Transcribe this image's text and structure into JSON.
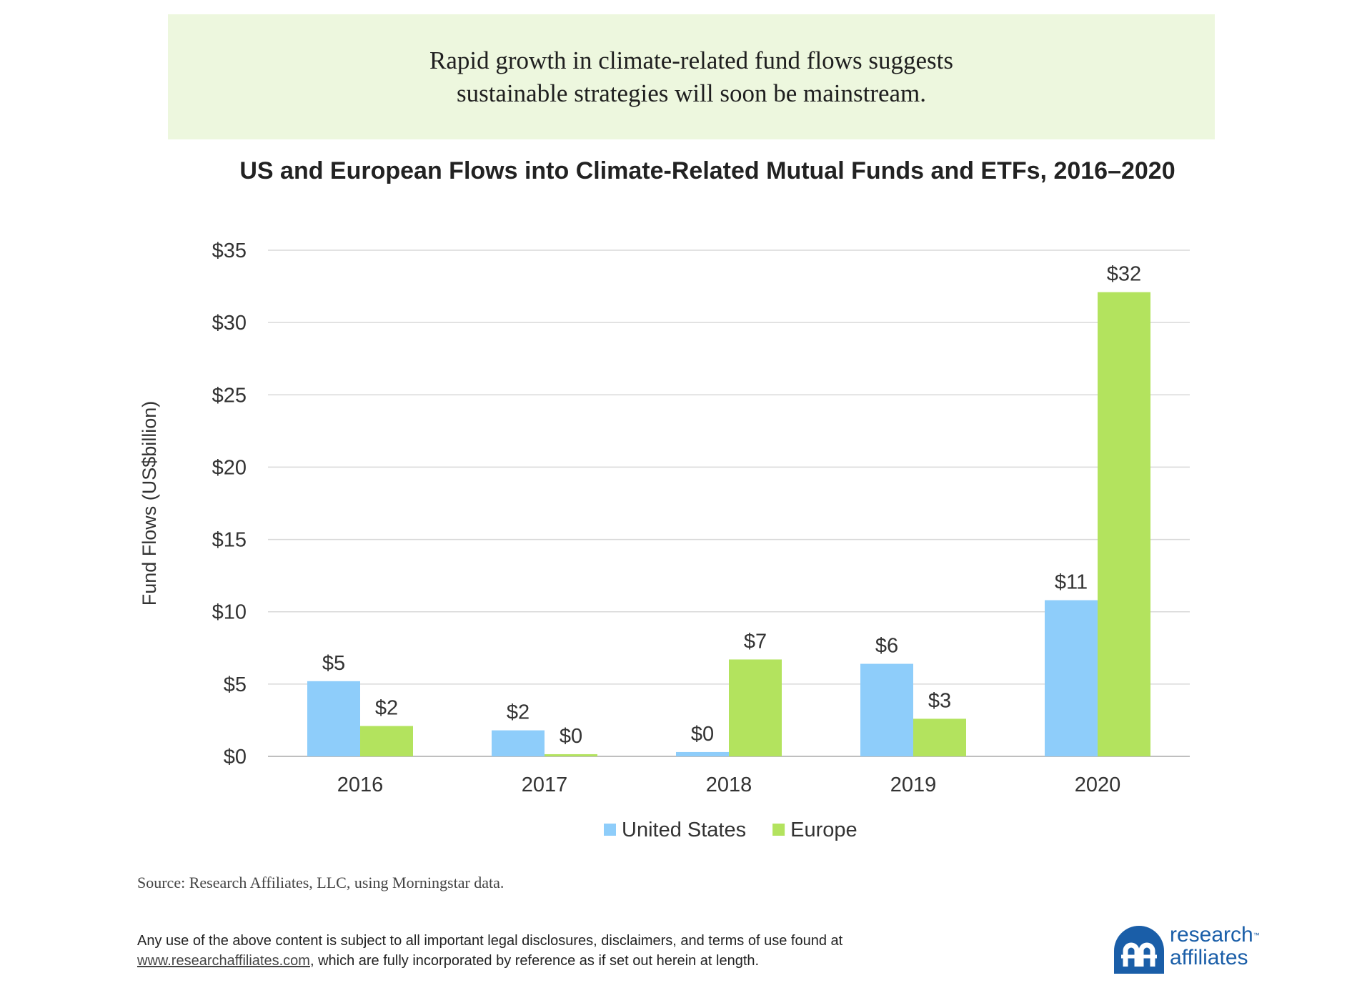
{
  "banner": {
    "line1": "Rapid growth in climate-related fund flows suggests",
    "line2": "sustainable strategies will soon be mainstream."
  },
  "chart_data": {
    "type": "bar",
    "title": "US and European Flows into Climate-Related Mutual Funds and ETFs, 2016–2020",
    "xlabel": "",
    "ylabel": "Fund Flows (US$billion)",
    "categories": [
      "2016",
      "2017",
      "2018",
      "2019",
      "2020"
    ],
    "ylim": [
      0,
      35
    ],
    "yticks": [
      0,
      5,
      10,
      15,
      20,
      25,
      30,
      35
    ],
    "ytick_labels": [
      "$0",
      "$5",
      "$10",
      "$15",
      "$20",
      "$25",
      "$30",
      "$35"
    ],
    "grid": true,
    "legend_position": "bottom-center",
    "series": [
      {
        "name": "United States",
        "color": "#8ecdfa",
        "values": [
          5.2,
          1.8,
          0.3,
          6.4,
          10.8
        ],
        "labels": [
          "$5",
          "$2",
          "$0",
          "$6",
          "$11"
        ]
      },
      {
        "name": "Europe",
        "color": "#b3e35e",
        "values": [
          2.1,
          0.15,
          6.7,
          2.6,
          32.1
        ],
        "labels": [
          "$2",
          "$0",
          "$7",
          "$3",
          "$32"
        ]
      }
    ]
  },
  "footer": {
    "source": "Source: Research Affiliates, LLC, using Morningstar data.",
    "disclaimer_line1": "Any use of the above content is subject to all important legal disclosures, disclaimers, and terms of use found at",
    "disclaimer_link": "www.researchaffiliates.com",
    "disclaimer_line2": ", which are fully incorporated by reference as if set out herein at length."
  },
  "logo": {
    "line1": "research",
    "tm": "™",
    "line2": "affiliates",
    "color": "#1a5ea8"
  }
}
